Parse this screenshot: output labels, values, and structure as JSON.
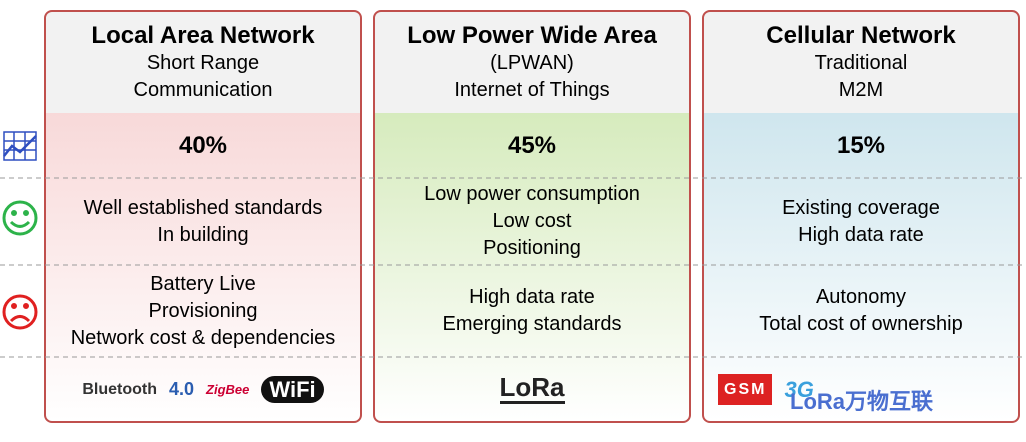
{
  "columns": [
    {
      "title": "Local Area Network",
      "subtitle": [
        "Short Range",
        "Communication"
      ],
      "share": "40%",
      "pros": [
        "Well established standards",
        "In building"
      ],
      "cons": [
        "Battery Live",
        "Provisioning",
        "Network cost & dependencies"
      ],
      "logos": [
        "Bluetooth",
        "4.0",
        "ZigBee",
        "WiFi"
      ]
    },
    {
      "title": "Low Power Wide Area",
      "subtitle": [
        "(LPWAN)",
        "Internet of Things"
      ],
      "share": "45%",
      "pros": [
        "Low power consumption",
        "Low cost",
        "Positioning"
      ],
      "cons": [
        "High data rate",
        "Emerging standards"
      ],
      "logos": [
        "LoRa"
      ]
    },
    {
      "title": "Cellular Network",
      "subtitle": [
        "Traditional",
        "M2M"
      ],
      "share": "15%",
      "pros": [
        "Existing coverage",
        "High data rate"
      ],
      "cons": [
        "Autonomy",
        "Total cost of ownership"
      ],
      "logos": [
        "GSM",
        "3G"
      ]
    }
  ],
  "watermark": "LoRa万物互联"
}
